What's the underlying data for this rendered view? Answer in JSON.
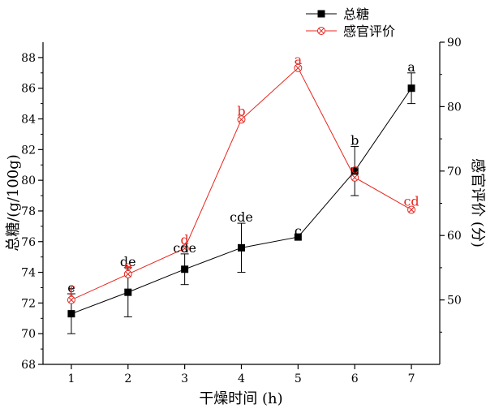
{
  "chart_data": {
    "type": "line",
    "xlabel": "干燥时间 (h)",
    "ylabel_left": "总糖/(g/100g)",
    "ylabel_right": "感官评价 (分)",
    "x": [
      1,
      2,
      3,
      4,
      5,
      6,
      7
    ],
    "x_ticks": [
      "1",
      "2",
      "3",
      "4",
      "5",
      "6",
      "7"
    ],
    "ylim_left": [
      68,
      89
    ],
    "y_ticks_left": [
      "68",
      "70",
      "72",
      "74",
      "76",
      "78",
      "80",
      "82",
      "84",
      "86",
      "88"
    ],
    "ylim_right": [
      40,
      90
    ],
    "y_ticks_right": [
      "50",
      "60",
      "70",
      "80",
      "90"
    ],
    "grid": false,
    "legend_position": "top-right",
    "series": [
      {
        "name": "总糖",
        "axis": "left",
        "color": "#000000",
        "marker": "filled-square",
        "values": [
          71.3,
          72.7,
          74.2,
          75.6,
          76.3,
          80.6,
          86.0
        ],
        "error": [
          1.3,
          1.6,
          1.0,
          1.6,
          0,
          1.6,
          1.0
        ],
        "labels": [
          "e",
          "de",
          "cde",
          "cde",
          "c",
          "b",
          "a"
        ]
      },
      {
        "name": "感官评价",
        "axis": "right",
        "color": "#e8251e",
        "marker": "circle-cross",
        "values": [
          50.0,
          54.0,
          58.0,
          78.0,
          86.0,
          69.0,
          64.0
        ],
        "labels": [
          "f",
          "e",
          "d",
          "b",
          "a",
          "c",
          "cd"
        ]
      }
    ]
  }
}
